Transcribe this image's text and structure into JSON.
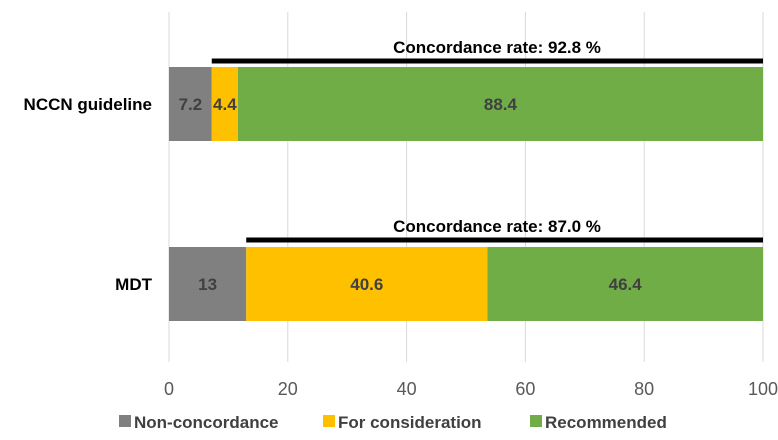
{
  "chart_data": {
    "type": "bar",
    "orientation": "horizontal",
    "stacked": true,
    "categories": [
      "NCCN guideline",
      "MDT"
    ],
    "series": [
      {
        "name": "Non-concordance",
        "color": "#808080",
        "values": [
          7.2,
          13
        ]
      },
      {
        "name": "For consideration",
        "color": "#ffc000",
        "values": [
          4.4,
          40.6
        ]
      },
      {
        "name": "Recommended",
        "color": "#70ad47",
        "values": [
          88.4,
          46.4
        ]
      }
    ],
    "data_labels": [
      [
        "7.2",
        "4.4",
        "88.4"
      ],
      [
        "13",
        "40.6",
        "46.4"
      ]
    ],
    "annotations": [
      {
        "category": "NCCN guideline",
        "text": "Concordance rate: 92.8 %",
        "from": 7.2,
        "to": 100
      },
      {
        "category": "MDT",
        "text": "Concordance rate: 87.0 %",
        "from": 13,
        "to": 100
      }
    ],
    "xlim": [
      0,
      100
    ],
    "xticks": [
      0,
      20,
      40,
      60,
      80,
      100
    ],
    "xtick_labels": [
      "0",
      "20",
      "40",
      "60",
      "80",
      "100"
    ],
    "grid": "vertical",
    "legend": "bottom",
    "title": "",
    "xlabel": "",
    "ylabel": ""
  }
}
